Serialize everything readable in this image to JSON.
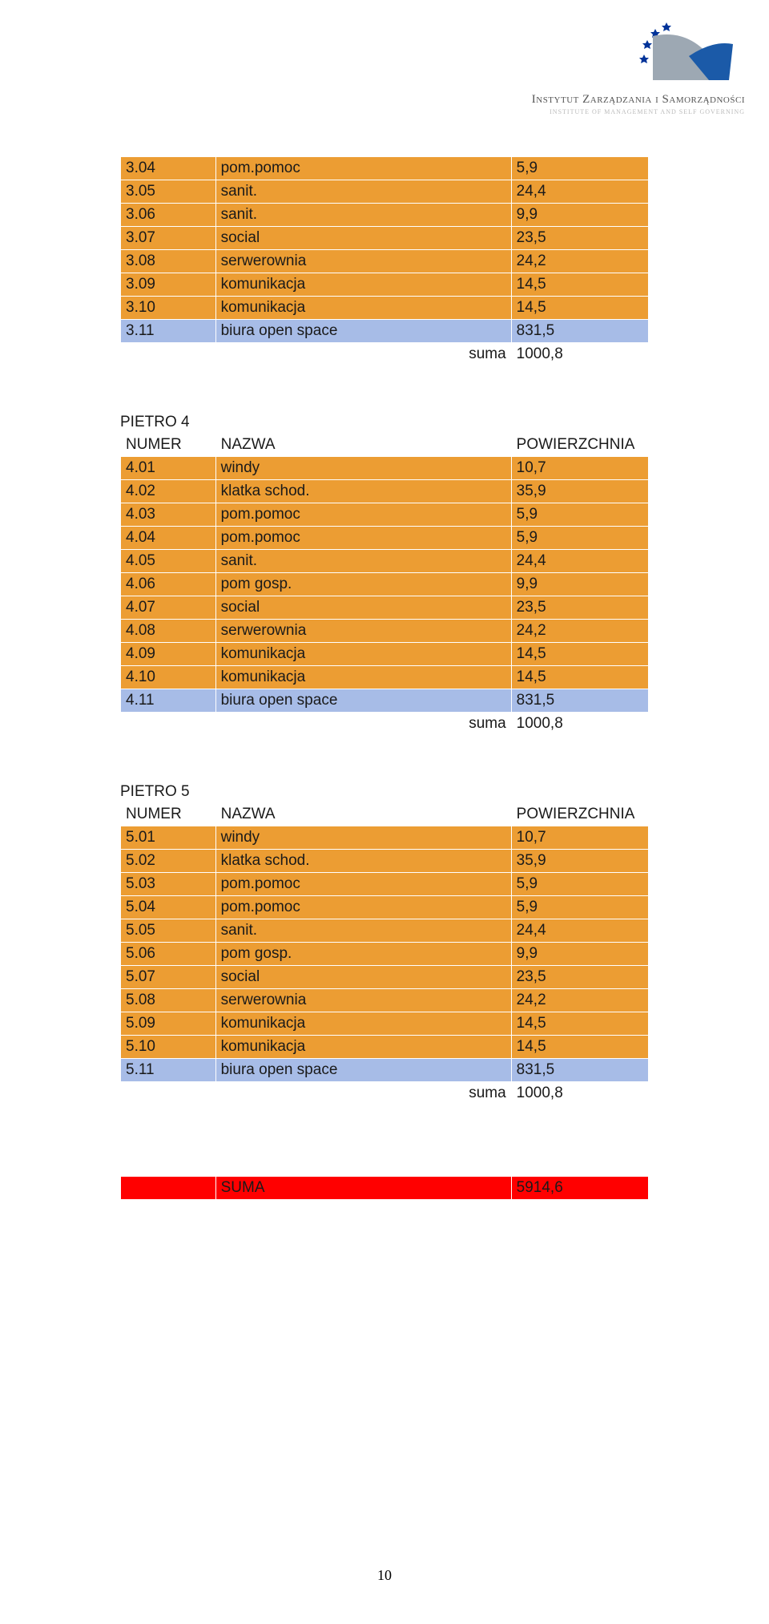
{
  "logo": {
    "line1": "Instytut Zarządzania i Samorządności",
    "line2": "INSTITUTE OF MANAGEMENT AND SELF GOVERNING"
  },
  "colors": {
    "orange": "#ec9d33",
    "blue": "#a7bce7",
    "red": "#ff0000",
    "white": "#ffffff",
    "border": "#ffffff"
  },
  "sections": [
    {
      "title": null,
      "header": null,
      "rows": [
        {
          "style": "orange",
          "c1": "3.04",
          "c2": "pom.pomoc",
          "c3": "5,9"
        },
        {
          "style": "orange",
          "c1": "3.05",
          "c2": "sanit.",
          "c3": "24,4"
        },
        {
          "style": "orange",
          "c1": "3.06",
          "c2": "sanit.",
          "c3": "9,9"
        },
        {
          "style": "orange",
          "c1": "3.07",
          "c2": "social",
          "c3": "23,5"
        },
        {
          "style": "orange",
          "c1": "3.08",
          "c2": "serwerownia",
          "c3": "24,2"
        },
        {
          "style": "orange",
          "c1": "3.09",
          "c2": "komunikacja",
          "c3": "14,5"
        },
        {
          "style": "orange",
          "c1": "3.10",
          "c2": "komunikacja",
          "c3": "14,5"
        },
        {
          "style": "blue",
          "c1": "3.11",
          "c2": "biura open space",
          "c3": "831,5"
        },
        {
          "style": "white",
          "c1": "",
          "c2": "suma",
          "c3": "1000,8"
        }
      ]
    },
    {
      "title": "PIETRO 4",
      "header": {
        "c1": "NUMER",
        "c2": "NAZWA",
        "c3": "POWIERZCHNIA"
      },
      "rows": [
        {
          "style": "orange",
          "c1": "4.01",
          "c2": "windy",
          "c3": "10,7"
        },
        {
          "style": "orange",
          "c1": "4.02",
          "c2": "klatka schod.",
          "c3": "35,9"
        },
        {
          "style": "orange",
          "c1": "4.03",
          "c2": "pom.pomoc",
          "c3": "5,9"
        },
        {
          "style": "orange",
          "c1": "4.04",
          "c2": "pom.pomoc",
          "c3": "5,9"
        },
        {
          "style": "orange",
          "c1": "4.05",
          "c2": "sanit.",
          "c3": "24,4"
        },
        {
          "style": "orange",
          "c1": "4.06",
          "c2": "pom gosp.",
          "c3": "9,9"
        },
        {
          "style": "orange",
          "c1": "4.07",
          "c2": "social",
          "c3": "23,5"
        },
        {
          "style": "orange",
          "c1": "4.08",
          "c2": "serwerownia",
          "c3": "24,2"
        },
        {
          "style": "orange",
          "c1": "4.09",
          "c2": "komunikacja",
          "c3": "14,5"
        },
        {
          "style": "orange",
          "c1": "4.10",
          "c2": "komunikacja",
          "c3": "14,5"
        },
        {
          "style": "blue",
          "c1": "4.11",
          "c2": "biura open space",
          "c3": "831,5"
        },
        {
          "style": "white",
          "c1": "",
          "c2": "suma",
          "c3": "1000,8"
        }
      ]
    },
    {
      "title": "PIETRO 5",
      "header": {
        "c1": "NUMER",
        "c2": "NAZWA",
        "c3": "POWIERZCHNIA"
      },
      "rows": [
        {
          "style": "orange",
          "c1": "5.01",
          "c2": "windy",
          "c3": "10,7"
        },
        {
          "style": "orange",
          "c1": "5.02",
          "c2": "klatka schod.",
          "c3": "35,9"
        },
        {
          "style": "orange",
          "c1": "5.03",
          "c2": "pom.pomoc",
          "c3": "5,9"
        },
        {
          "style": "orange",
          "c1": "5.04",
          "c2": "pom.pomoc",
          "c3": "5,9"
        },
        {
          "style": "orange",
          "c1": "5.05",
          "c2": "sanit.",
          "c3": "24,4"
        },
        {
          "style": "orange",
          "c1": "5.06",
          "c2": "pom gosp.",
          "c3": "9,9"
        },
        {
          "style": "orange",
          "c1": "5.07",
          "c2": "social",
          "c3": "23,5"
        },
        {
          "style": "orange",
          "c1": "5.08",
          "c2": "serwerownia",
          "c3": "24,2"
        },
        {
          "style": "orange",
          "c1": "5.09",
          "c2": "komunikacja",
          "c3": "14,5"
        },
        {
          "style": "orange",
          "c1": "5.10",
          "c2": "komunikacja",
          "c3": "14,5"
        },
        {
          "style": "blue",
          "c1": "5.11",
          "c2": "biura open space",
          "c3": "831,5"
        },
        {
          "style": "white",
          "c1": "",
          "c2": "suma",
          "c3": "1000,8"
        }
      ]
    }
  ],
  "total": {
    "label": "SUMA",
    "value": "5914,6"
  },
  "page_number": "10"
}
